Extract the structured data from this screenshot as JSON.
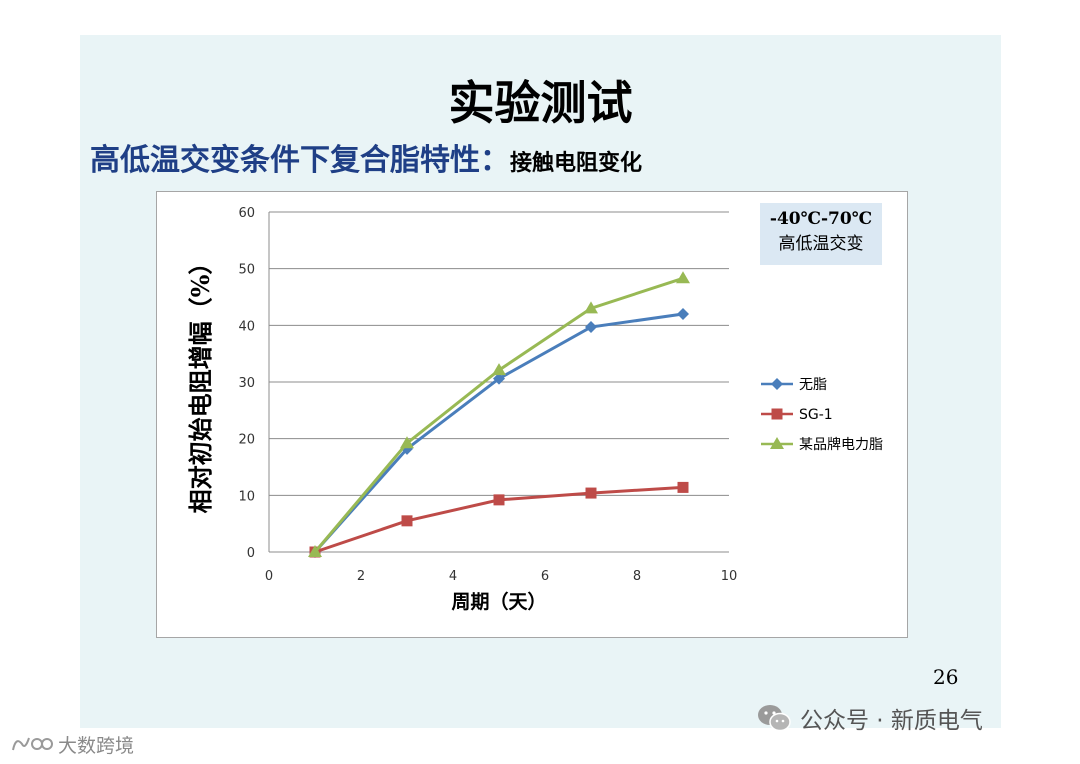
{
  "slide": {
    "title": "实验测试",
    "subtitle_main": "高低温交变条件下复合脂特性：",
    "subtitle_sub": "接触电阻变化",
    "page_number": "26"
  },
  "chart_data": {
    "type": "line",
    "title": "",
    "xlabel": "周期（天）",
    "ylabel": "相对初始电阻增幅（%）",
    "xlim": [
      0,
      10
    ],
    "ylim": [
      0,
      60
    ],
    "x_ticks": [
      0,
      2,
      4,
      6,
      8,
      10
    ],
    "y_ticks": [
      0,
      10,
      20,
      30,
      40,
      50,
      60
    ],
    "grid": "horizontal",
    "legend_position": "right",
    "annotation": [
      "-40℃-70℃",
      "高低温交变"
    ],
    "series": [
      {
        "name": "无脂",
        "color": "#4a7ebb",
        "marker": "diamond",
        "x": [
          1,
          3,
          5,
          7,
          9
        ],
        "y": [
          0,
          18.2,
          30.6,
          39.7,
          42
        ]
      },
      {
        "name": "SG-1",
        "color": "#be4b48",
        "marker": "square",
        "x": [
          1,
          3,
          5,
          7,
          9
        ],
        "y": [
          0,
          5.5,
          9.2,
          10.4,
          11.4
        ]
      },
      {
        "name": "某品牌电力脂",
        "color": "#98b954",
        "marker": "triangle",
        "x": [
          1,
          3,
          5,
          7,
          9
        ],
        "y": [
          0,
          19.2,
          32.1,
          43,
          48.3
        ]
      }
    ]
  },
  "watermarks": {
    "right_text": "公众号 · 新质电气",
    "left_text": "大数跨境"
  },
  "icons": {
    "wechat": "wechat-icon",
    "brand_logo": "brand-logo-icon"
  }
}
